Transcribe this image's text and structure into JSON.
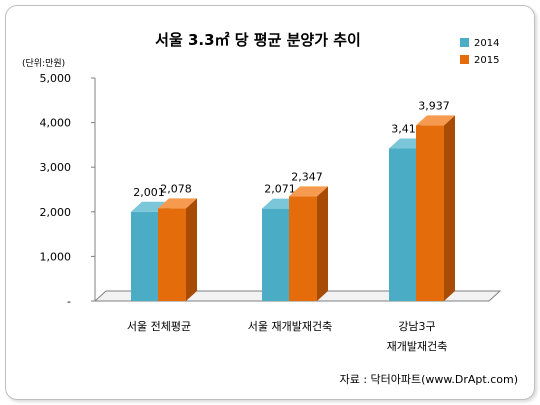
{
  "chart_data": {
    "type": "bar",
    "title": "서울 3.3㎡ 당 평균 분양가 추이",
    "unit_label": "(단위:만원)",
    "categories": [
      [
        "서울 전체평균"
      ],
      [
        "서울 재개발재건축"
      ],
      [
        "강남3구",
        "재개발재건축"
      ]
    ],
    "series": [
      {
        "name": "2014",
        "values": [
          2001,
          2071,
          3419
        ],
        "labels": [
          "2,001",
          "2,071",
          "3,419"
        ]
      },
      {
        "name": "2015",
        "values": [
          2078,
          2347,
          3937
        ],
        "labels": [
          "2,078",
          "2,347",
          "3,937"
        ]
      }
    ],
    "yticks": [
      "-",
      "1,000",
      "2,000",
      "3,000",
      "4,000",
      "5,000"
    ],
    "ylim": [
      0,
      5000
    ],
    "legend_position": "top-right",
    "grid": false,
    "source": "자료 : 닥터아파트(www.DrApt.com)"
  },
  "colors": {
    "series_2014": "#4bacc6",
    "series_2014_side": "#2d7f95",
    "series_2014_top": "#7cc6da",
    "series_2015": "#e46c0a",
    "series_2015_side": "#a84b04",
    "series_2015_top": "#f59a4e",
    "floor": "#f2f2f2",
    "axis": "#808080"
  }
}
